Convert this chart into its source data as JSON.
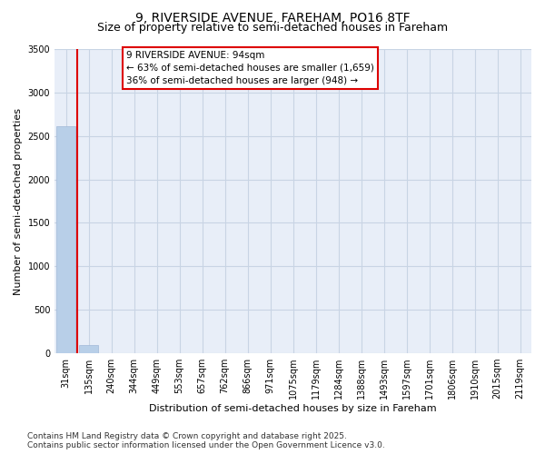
{
  "title_line1": "9, RIVERSIDE AVENUE, FAREHAM, PO16 8TF",
  "title_line2": "Size of property relative to semi-detached houses in Fareham",
  "xlabel": "Distribution of semi-detached houses by size in Fareham",
  "ylabel": "Number of semi-detached properties",
  "bin_labels": [
    "31sqm",
    "135sqm",
    "240sqm",
    "344sqm",
    "449sqm",
    "553sqm",
    "657sqm",
    "762sqm",
    "866sqm",
    "971sqm",
    "1075sqm",
    "1179sqm",
    "1284sqm",
    "1388sqm",
    "1493sqm",
    "1597sqm",
    "1701sqm",
    "1806sqm",
    "1910sqm",
    "2015sqm",
    "2119sqm"
  ],
  "bar_values": [
    2607,
    100,
    0,
    0,
    0,
    0,
    0,
    0,
    0,
    0,
    0,
    0,
    0,
    0,
    0,
    0,
    0,
    0,
    0,
    0,
    0
  ],
  "bar_color": "#b8cfe8",
  "bar_edge_color": "#a0b8d8",
  "highlight_bar_index": 0,
  "red_line_x": 0.5,
  "highlight_color": "#dd0000",
  "property_label": "9 RIVERSIDE AVENUE: 94sqm",
  "annotation_line2": "← 63% of semi-detached houses are smaller (1,659)",
  "annotation_line3": "36% of semi-detached houses are larger (948) →",
  "annotation_box_color": "#dd0000",
  "ylim": [
    0,
    3500
  ],
  "yticks": [
    0,
    500,
    1000,
    1500,
    2000,
    2500,
    3000,
    3500
  ],
  "footnote_line1": "Contains HM Land Registry data © Crown copyright and database right 2025.",
  "footnote_line2": "Contains public sector information licensed under the Open Government Licence v3.0.",
  "background_color": "#ffffff",
  "plot_bg_color": "#e8eef8",
  "grid_color": "#c8d4e4",
  "title_fontsize": 10,
  "subtitle_fontsize": 9,
  "axis_label_fontsize": 8,
  "tick_fontsize": 7,
  "annotation_fontsize": 7.5,
  "footnote_fontsize": 6.5
}
